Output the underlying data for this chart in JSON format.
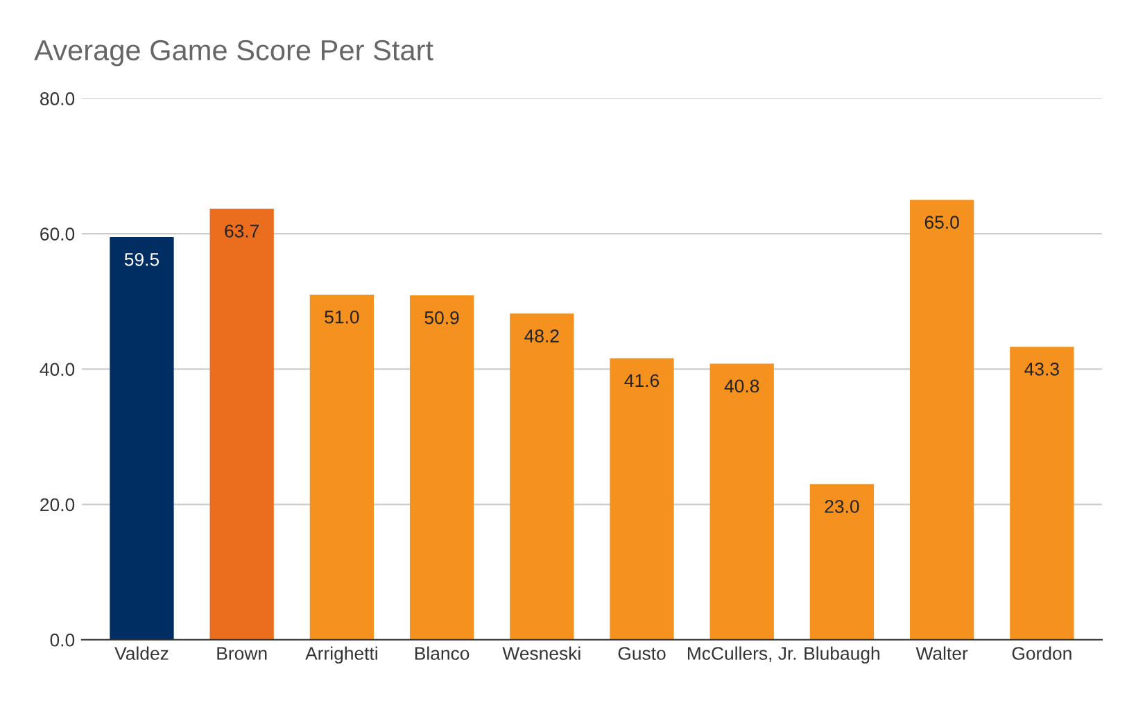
{
  "chart_data": {
    "type": "bar",
    "title": "Average Game Score Per Start",
    "categories": [
      "Valdez",
      "Brown",
      "Arrighetti",
      "Blanco",
      "Wesneski",
      "Gusto",
      "McCullers, Jr.",
      "Blubaugh",
      "Walter",
      "Gordon"
    ],
    "values": [
      59.5,
      63.7,
      51.0,
      50.9,
      48.2,
      41.6,
      40.8,
      23.0,
      65.0,
      43.3
    ],
    "colors": [
      "#002d62",
      "#eb6e1f",
      "#f5911e",
      "#f5911e",
      "#f5911e",
      "#f5911e",
      "#f5911e",
      "#f5911e",
      "#f5911e",
      "#f5911e"
    ],
    "value_labels": [
      "59.5",
      "63.7",
      "51.0",
      "50.9",
      "48.2",
      "41.6",
      "40.8",
      "23.0",
      "65.0",
      "43.3"
    ],
    "ylim": [
      0,
      80
    ],
    "yticks": [
      {
        "value": 0,
        "label": "0.0"
      },
      {
        "value": 20,
        "label": "20.0"
      },
      {
        "value": 40,
        "label": "40.0"
      },
      {
        "value": 60,
        "label": "60.0"
      },
      {
        "value": 80,
        "label": "80.0"
      }
    ],
    "grid": "y",
    "legend": false
  }
}
